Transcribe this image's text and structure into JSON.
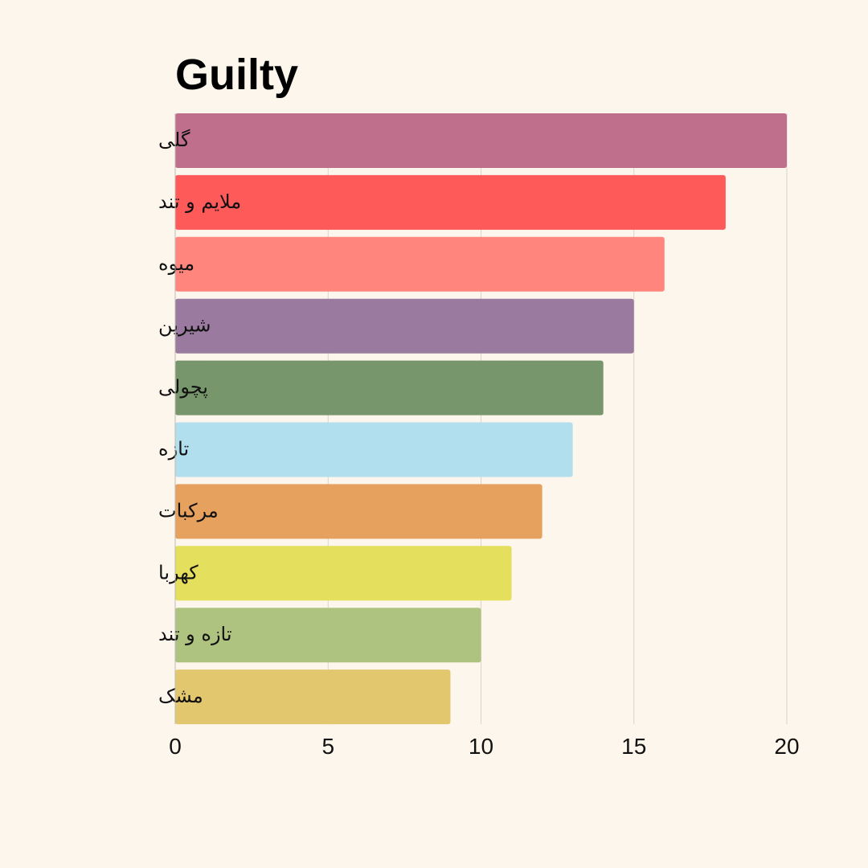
{
  "chart_data": {
    "type": "bar",
    "orientation": "horizontal",
    "title": "Guilty",
    "xlabel": "",
    "ylabel": "",
    "categories": [
      "گلی",
      "ملایم و تند",
      "میوه",
      "شیرین",
      "پچولی",
      "تازه",
      "مرکبات",
      "کهربا",
      "تازه و تند",
      "مشک"
    ],
    "values": [
      20,
      18,
      16,
      15,
      14,
      13,
      12,
      11,
      10,
      9
    ],
    "colors": [
      "#BF6E8C",
      "#FF5A5A",
      "#FF857D",
      "#9A7A9E",
      "#78966C",
      "#B1DFEE",
      "#E6A15E",
      "#E4DF5C",
      "#AFC380",
      "#E2C76F"
    ],
    "xlim": [
      0,
      20
    ],
    "xticks": [
      "0",
      "5",
      "10",
      "15",
      "20"
    ],
    "grid": "vertical",
    "background": "#FDF6EC"
  }
}
